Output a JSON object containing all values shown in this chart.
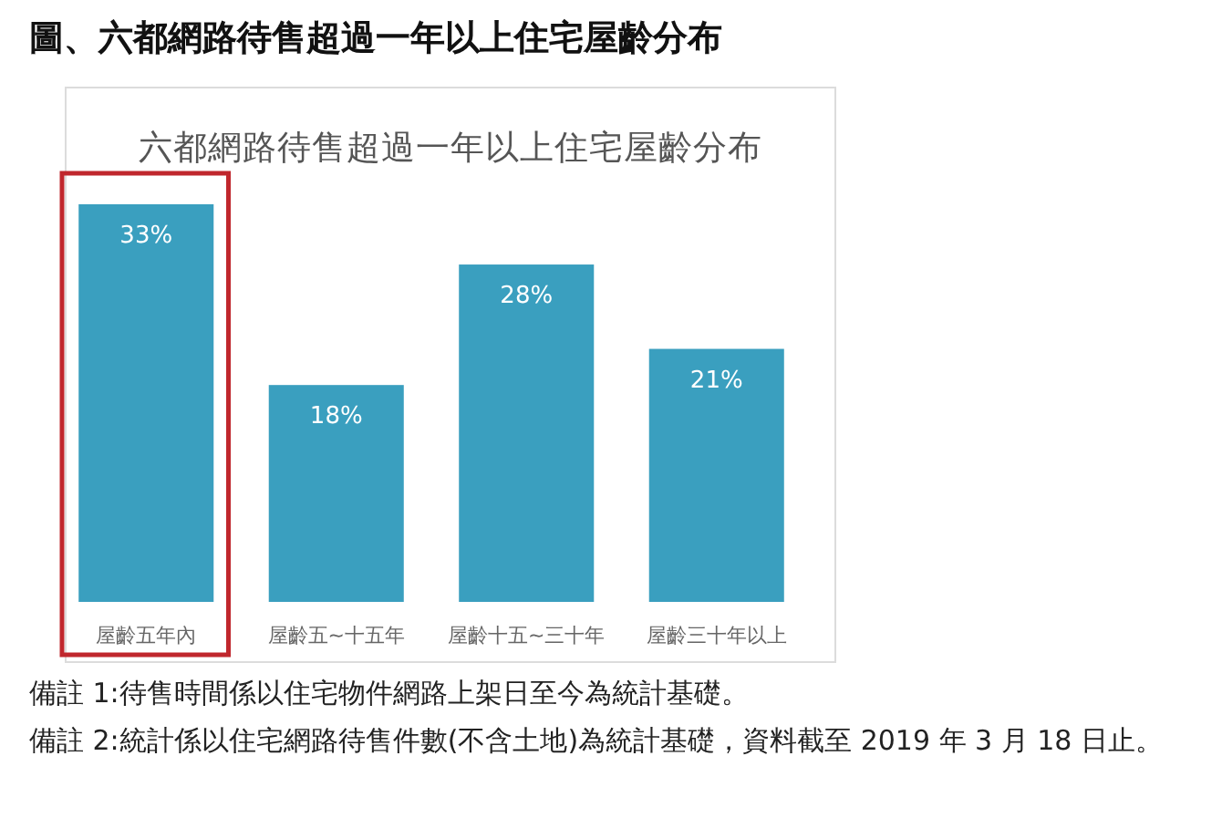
{
  "chart_data": {
    "type": "bar",
    "title": "圖、六都網路待售超過一年以上住宅屋齡分布",
    "subtitle": "六都網路待售超過一年以上住宅屋齡分布",
    "categories": [
      "屋齡五年內",
      "屋齡五~十五年",
      "屋齡十五~三十年",
      "屋齡三十年以上"
    ],
    "values": [
      33,
      18,
      28,
      21
    ],
    "value_labels": [
      "33%",
      "18%",
      "28%",
      "21%"
    ],
    "color": "#3a9fbf",
    "annotations": [
      "備註 1:待售時間係以住宅物件網路上架日至今為統計基礎。",
      "備註 2:統計係以住宅網路待售件數(不含土地)為統計基礎，資料截至 2019 年 3 月 18 日止。"
    ]
  }
}
